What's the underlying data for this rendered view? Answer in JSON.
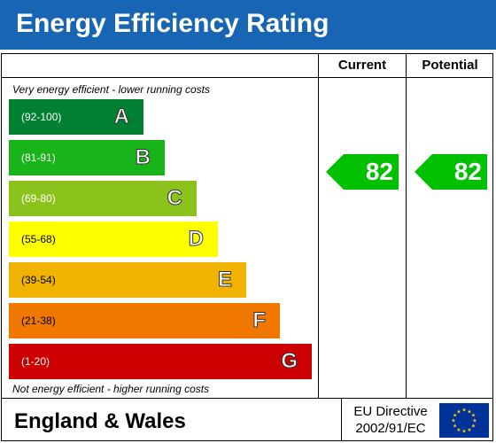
{
  "header": {
    "title": "Energy Efficiency Rating"
  },
  "columns": {
    "current": "Current",
    "potential": "Potential"
  },
  "notes": {
    "top": "Very energy efficient - lower running costs",
    "bottom": "Not energy efficient - higher running costs"
  },
  "chart_data": {
    "type": "bar",
    "title": "Energy Efficiency Rating",
    "bands": [
      {
        "letter": "A",
        "range": "(92-100)",
        "color": "#008030"
      },
      {
        "letter": "B",
        "range": "(81-91)",
        "color": "#19b419"
      },
      {
        "letter": "C",
        "range": "(69-80)",
        "color": "#8cc21c"
      },
      {
        "letter": "D",
        "range": "(55-68)",
        "color": "#ffff00"
      },
      {
        "letter": "E",
        "range": "(39-54)",
        "color": "#f0b400"
      },
      {
        "letter": "F",
        "range": "(21-38)",
        "color": "#f07800"
      },
      {
        "letter": "G",
        "range": "(1-20)",
        "color": "#cc0000"
      }
    ],
    "current": 82,
    "potential": 82,
    "rating_color": "#00c000"
  },
  "footer": {
    "title": "England & Wales",
    "directive_line1": "EU Directive",
    "directive_line2": "2002/91/EC",
    "flag_color": "#003399",
    "star_color": "#ffcc00"
  }
}
